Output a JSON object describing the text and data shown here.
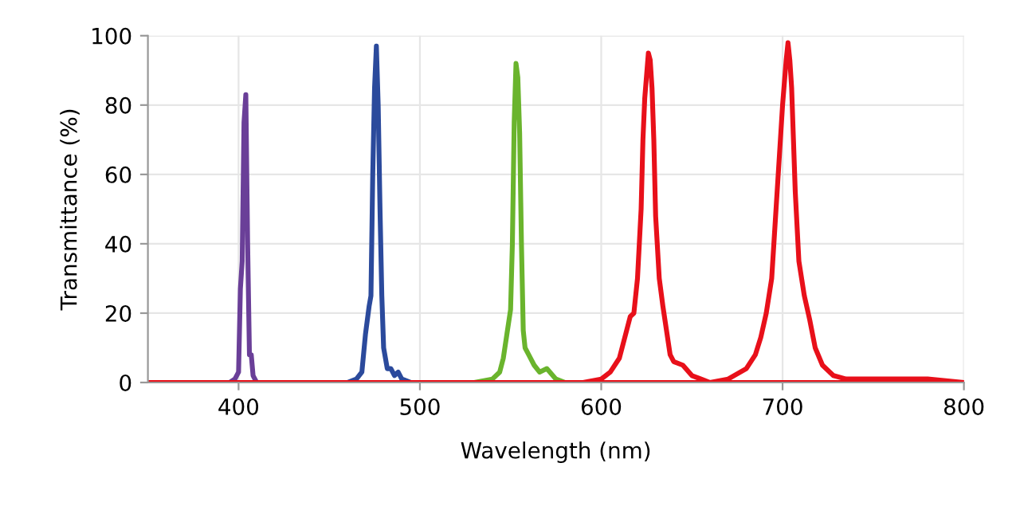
{
  "chart_data": {
    "type": "line",
    "xlabel": "Wavelength (nm)",
    "ylabel": "Transmittance (%)",
    "xlim": [
      350,
      800
    ],
    "xticks": [
      400,
      500,
      600,
      700,
      800
    ],
    "ylim": [
      0,
      100
    ],
    "yticks": [
      0,
      20,
      40,
      60,
      80,
      100
    ],
    "grid": true,
    "line_style": "solid",
    "marker": "none",
    "series": [
      {
        "color": "#6a3f98",
        "x": [
          395,
          398,
          400,
          401,
          402,
          403,
          404,
          405,
          406,
          407,
          408,
          410
        ],
        "values": [
          0,
          1,
          3,
          27,
          35,
          75,
          83,
          40,
          8,
          8,
          2,
          0
        ]
      },
      {
        "color": "#2b4a9c",
        "x": [
          460,
          465,
          468,
          470,
          472,
          473,
          474,
          475,
          476,
          477,
          478,
          479,
          480,
          482,
          484,
          486,
          488,
          490,
          495
        ],
        "values": [
          0,
          1,
          3,
          14,
          22,
          25,
          60,
          85,
          97,
          80,
          50,
          25,
          10,
          4,
          4,
          2,
          3,
          1,
          0
        ]
      },
      {
        "color": "#6ab42d",
        "x": [
          530,
          540,
          544,
          546,
          548,
          550,
          551,
          552,
          553,
          554,
          555,
          556,
          557,
          558,
          560,
          563,
          566,
          570,
          575,
          580
        ],
        "values": [
          0,
          1,
          3,
          7,
          14,
          21,
          40,
          75,
          92,
          88,
          72,
          40,
          15,
          10,
          8,
          5,
          3,
          4,
          1,
          0
        ]
      },
      {
        "color": "#e8101a",
        "x": [
          590,
          600,
          605,
          610,
          614,
          616,
          618,
          620,
          622,
          623,
          624,
          626,
          627,
          628,
          629,
          630,
          632,
          634,
          636,
          638,
          640,
          645,
          650,
          655,
          660,
          800
        ],
        "values": [
          0,
          1,
          3,
          7,
          15,
          19,
          20,
          30,
          50,
          70,
          82,
          95,
          93,
          85,
          70,
          48,
          30,
          22,
          15,
          8,
          6,
          5,
          2,
          1,
          0,
          0
        ]
      },
      {
        "color": "#e8101a",
        "x": [
          350,
          660,
          670,
          680,
          685,
          688,
          691,
          694,
          697,
          700,
          702,
          703,
          704,
          705,
          706,
          707,
          709,
          712,
          715,
          718,
          722,
          728,
          735,
          750,
          780,
          800
        ],
        "values": [
          0,
          0,
          1,
          4,
          8,
          13,
          20,
          30,
          55,
          80,
          93,
          98,
          93,
          85,
          70,
          55,
          35,
          25,
          18,
          10,
          5,
          2,
          1,
          1,
          1,
          0
        ]
      }
    ]
  }
}
